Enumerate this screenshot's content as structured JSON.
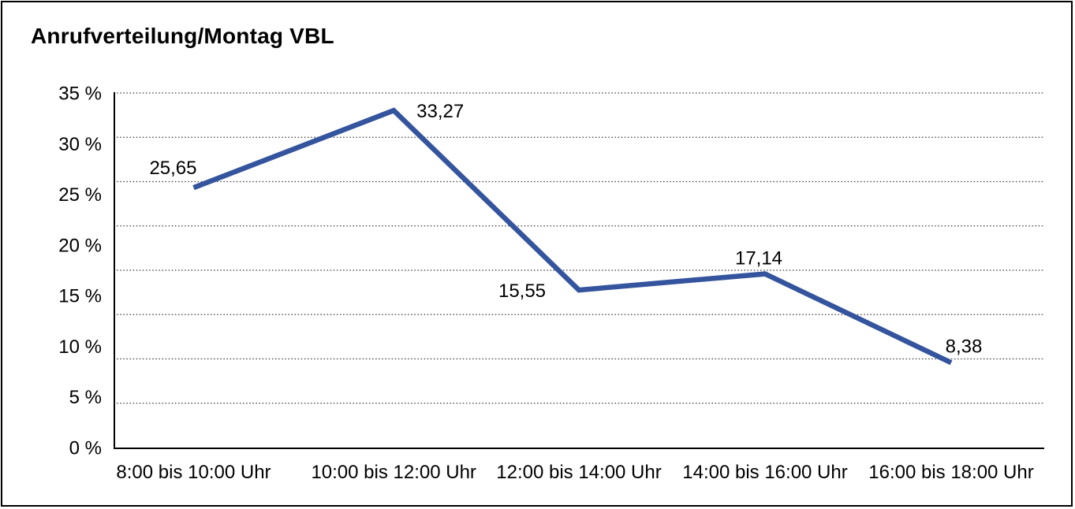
{
  "chart": {
    "title": "Anrufverteilung/Montag VBL"
  },
  "chart_data": {
    "type": "line",
    "title": "Anrufverteilung/Montag VBL",
    "categories": [
      "8:00 bis 10:00 Uhr",
      "10:00 bis 12:00 Uhr",
      "12:00 bis 14:00 Uhr",
      "14:00 bis 16:00 Uhr",
      "16:00 bis 18:00 Uhr"
    ],
    "values": [
      25.65,
      33.27,
      15.55,
      17.14,
      8.38
    ],
    "value_labels": [
      "25,65",
      "33,27",
      "15,55",
      "17,14",
      "8,38"
    ],
    "y_tick_labels": [
      "35 %",
      "30 %",
      "25 %",
      "20 %",
      "15 %",
      "10 %",
      "5 %",
      "0 %"
    ],
    "ylim": [
      0,
      35
    ],
    "y_tick_step": 5,
    "xlabel": "",
    "ylabel": "",
    "unit": "%",
    "decimal_separator": ",",
    "grid": "horizontal-dotted",
    "legend": "none",
    "line_color": "#34549E",
    "grid_color": "#3a3a3a",
    "axis_color": "#000000",
    "text_color": "#000000",
    "background": "#FFFFFF",
    "frame_border_color": "#000000"
  }
}
